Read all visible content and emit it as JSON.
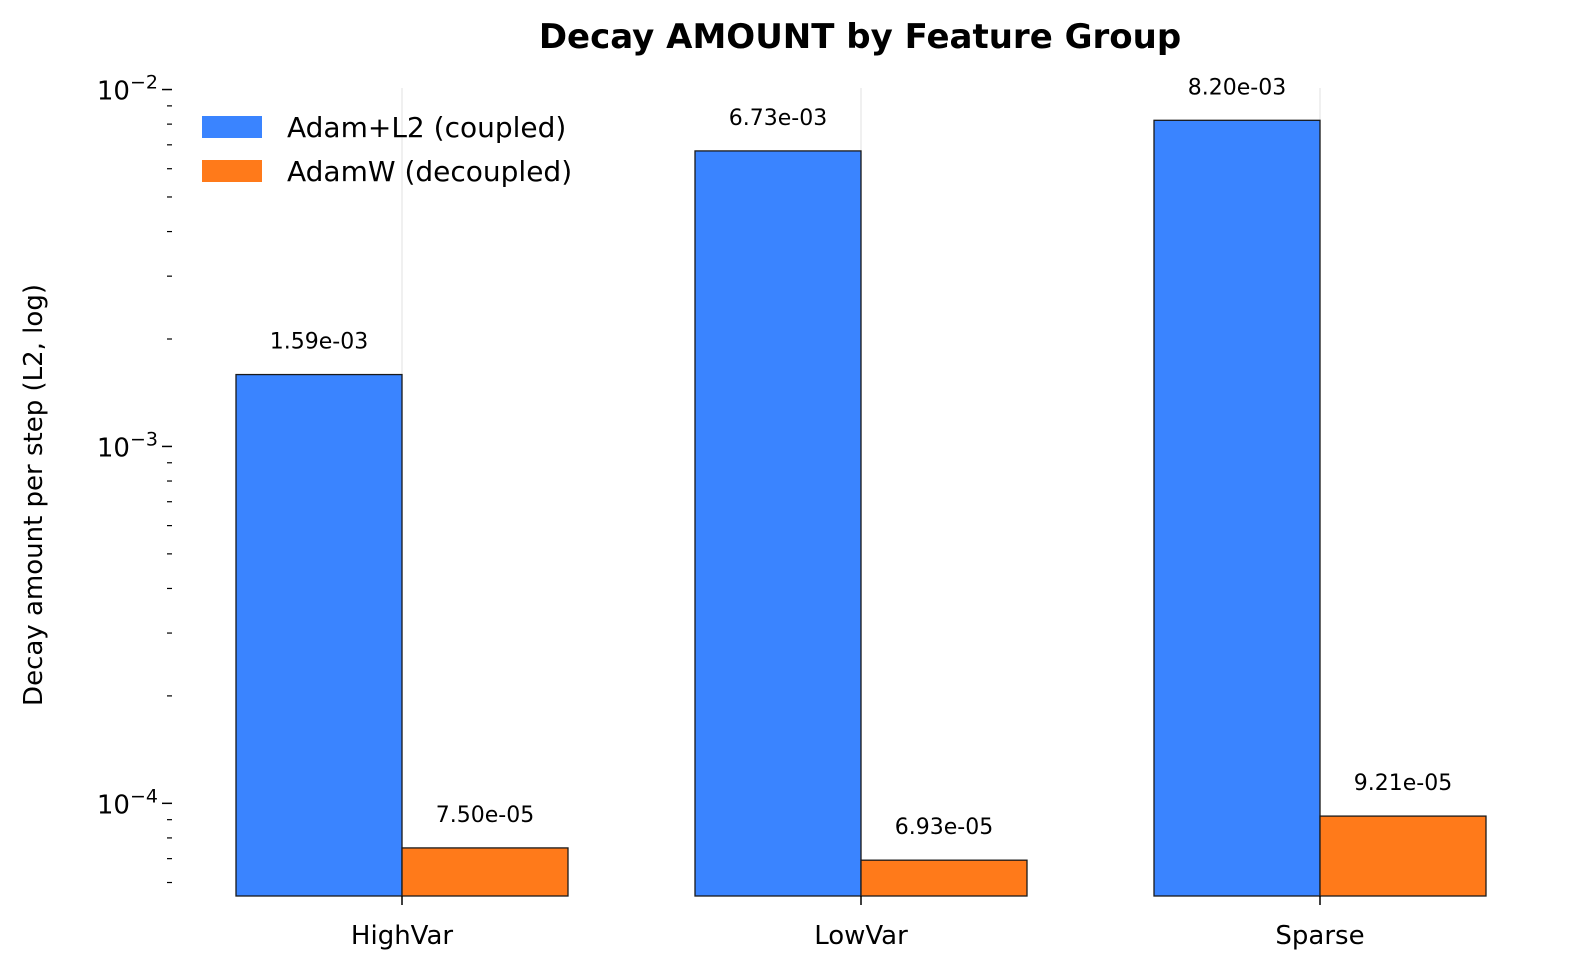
{
  "chart_data": {
    "type": "bar",
    "title": "Decay AMOUNT by Feature Group",
    "xlabel": "",
    "ylabel": "Decay amount per step (L2, log)",
    "y_scale": "log",
    "ylim": [
      5.5e-05,
      0.0101
    ],
    "grid": "vertical",
    "legend_position": "top-left",
    "categories": [
      "HighVar",
      "LowVar",
      "Sparse"
    ],
    "series": [
      {
        "name": "Adam+L2 (coupled)",
        "color": "#3a84ff",
        "values": [
          0.00159,
          0.00673,
          0.0082
        ],
        "labels": [
          "1.59e-03",
          "6.73e-03",
          "8.20e-03"
        ]
      },
      {
        "name": "AdamW (decoupled)",
        "color": "#ff7a1a",
        "values": [
          7.5e-05,
          6.93e-05,
          9.21e-05
        ],
        "labels": [
          "7.50e-05",
          "6.93e-05",
          "9.21e-05"
        ]
      }
    ],
    "y_major_ticks": [
      {
        "value": 0.01,
        "base": "10",
        "exp": "−2"
      },
      {
        "value": 0.001,
        "base": "10",
        "exp": "−3"
      },
      {
        "value": 0.0001,
        "base": "10",
        "exp": "−4"
      }
    ]
  }
}
